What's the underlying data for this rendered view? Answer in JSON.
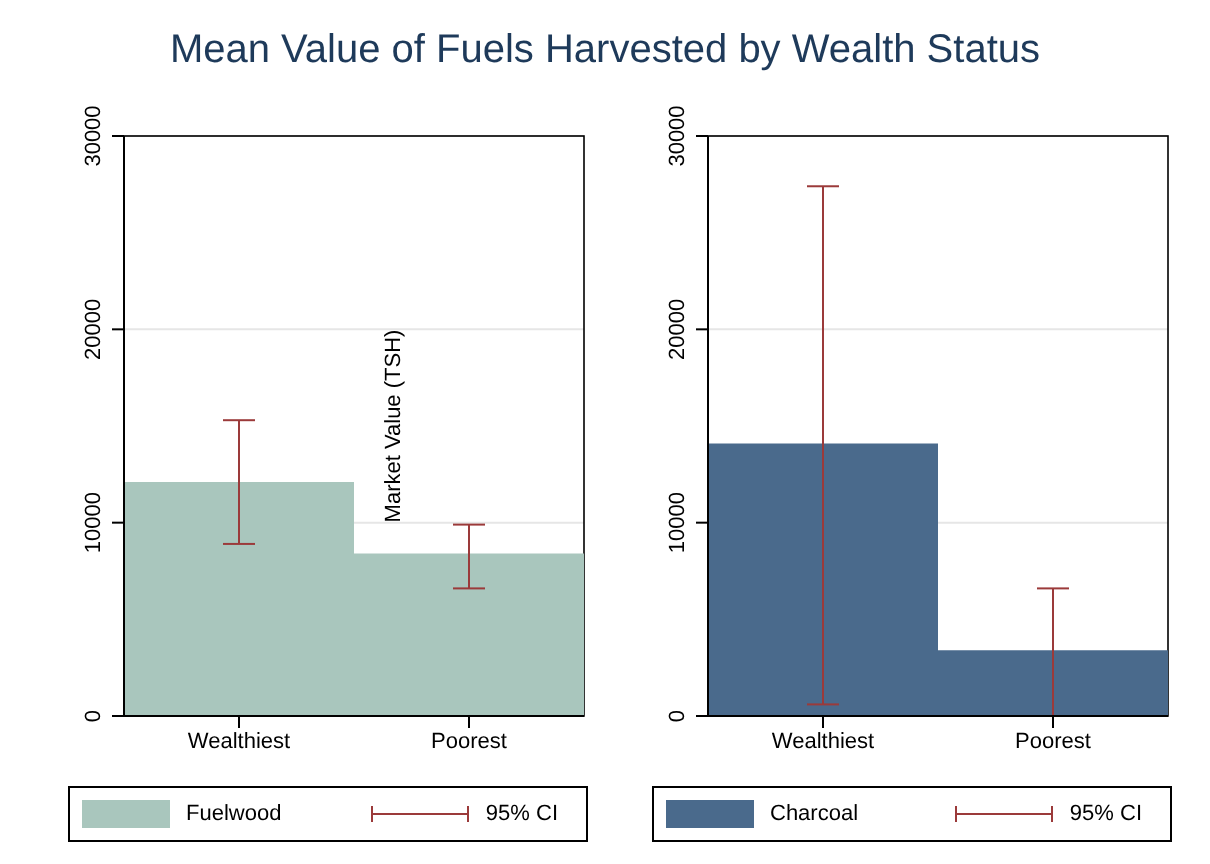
{
  "chart_data": [
    {
      "type": "bar",
      "title": "Mean Value of Fuels Harvested by Wealth Status",
      "categories": [
        "Wealthiest",
        "Poorest"
      ],
      "series": [
        {
          "name": "Fuelwood",
          "color": "#a9c6bd",
          "values": [
            12100,
            8400
          ],
          "errors": [
            [
              8900,
              15300
            ],
            [
              6600,
              9900
            ]
          ]
        }
      ],
      "ylim": [
        0,
        30000
      ],
      "yticks": [
        0,
        10000,
        20000,
        30000
      ],
      "grid": "y",
      "legend": "bottom",
      "annotations": [
        "95% CI",
        "Market Value (TSH)"
      ]
    },
    {
      "type": "bar",
      "categories": [
        "Wealthiest",
        "Poorest"
      ],
      "series": [
        {
          "name": "Charcoal",
          "color": "#4a6a8c",
          "values": [
            14100,
            3400
          ],
          "errors": [
            [
              600,
              27400
            ],
            [
              0,
              6600
            ]
          ]
        }
      ],
      "ylim": [
        0,
        30000
      ],
      "yticks": [
        0,
        10000,
        20000,
        30000
      ],
      "grid": "y",
      "legend": "bottom",
      "annotations": [
        "95% CI"
      ]
    }
  ]
}
